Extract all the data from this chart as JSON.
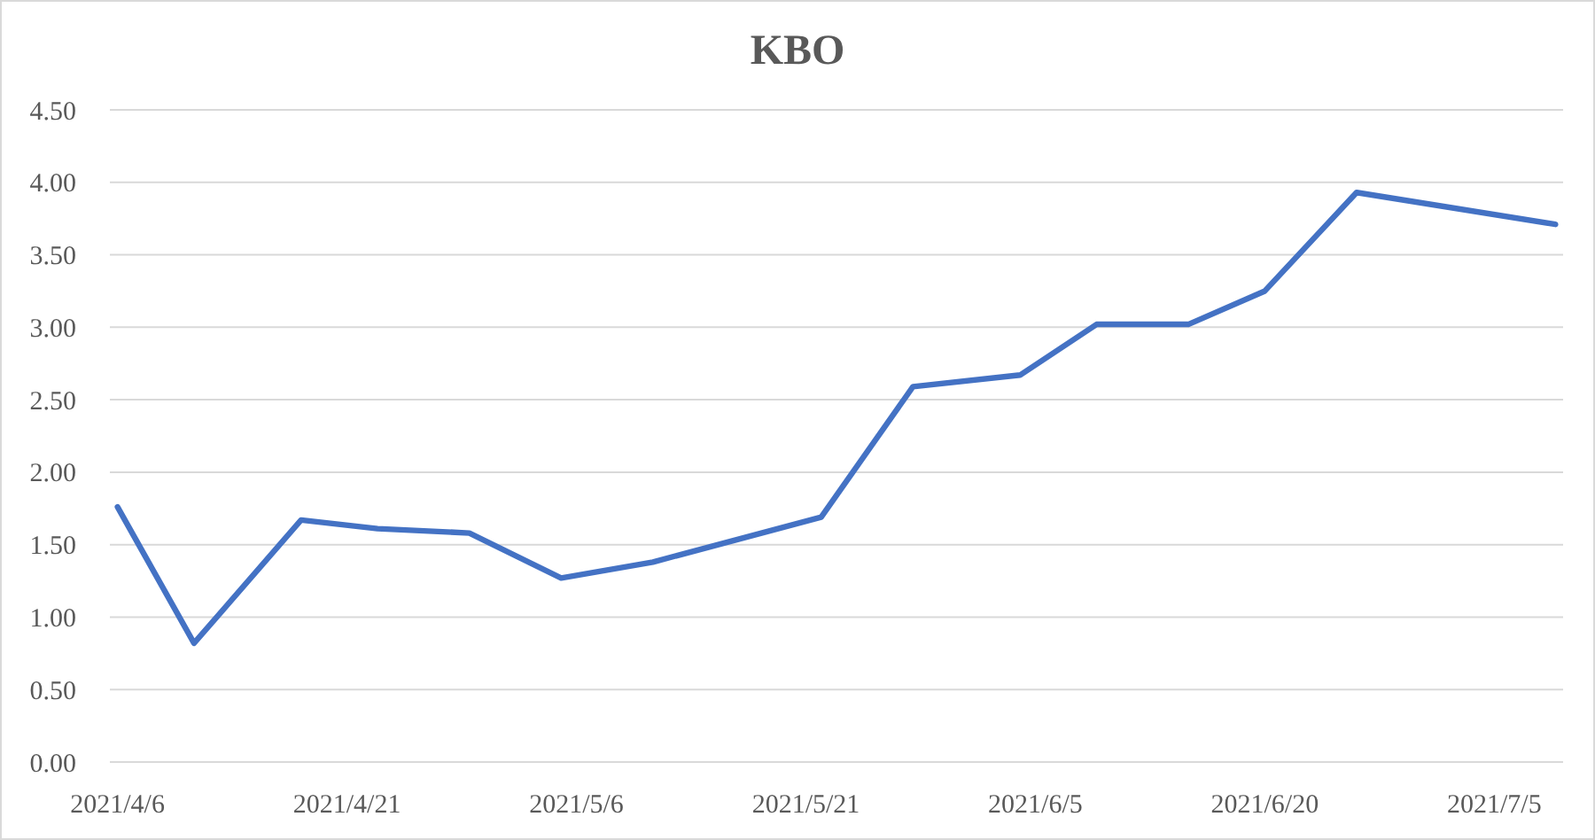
{
  "chart_data": {
    "type": "line",
    "title": "KBO",
    "x": [
      "2021-04-06",
      "2021-04-11",
      "2021-04-18",
      "2021-04-23",
      "2021-04-29",
      "2021-05-05",
      "2021-05-11",
      "2021-05-22",
      "2021-05-28",
      "2021-06-04",
      "2021-06-09",
      "2021-06-15",
      "2021-06-20",
      "2021-06-26",
      "2021-07-09"
    ],
    "series": [
      {
        "color": "#4472c4",
        "values": [
          1.76,
          0.82,
          1.67,
          1.61,
          1.58,
          1.27,
          1.38,
          1.69,
          2.59,
          2.67,
          3.02,
          3.02,
          3.25,
          3.93,
          3.71
        ]
      }
    ],
    "xlim": [
      "2021-04-05T12:00",
      "2021-07-09T12:00"
    ],
    "xticks": [
      {
        "value": "2021-04-06",
        "label": "2021/4/6"
      },
      {
        "value": "2021-04-21",
        "label": "2021/4/21"
      },
      {
        "value": "2021-05-06",
        "label": "2021/5/6"
      },
      {
        "value": "2021-05-21",
        "label": "2021/5/21"
      },
      {
        "value": "2021-06-05",
        "label": "2021/6/5"
      },
      {
        "value": "2021-06-20",
        "label": "2021/6/20"
      },
      {
        "value": "2021-07-05",
        "label": "2021/7/5"
      }
    ],
    "ylim": [
      0,
      4.5
    ],
    "yticks": [
      {
        "value": 0,
        "label": "0.00"
      },
      {
        "value": 0.5,
        "label": "0.50"
      },
      {
        "value": 1,
        "label": "1.00"
      },
      {
        "value": 1.5,
        "label": "1.50"
      },
      {
        "value": 2,
        "label": "2.00"
      },
      {
        "value": 2.5,
        "label": "2.50"
      },
      {
        "value": 3,
        "label": "3.00"
      },
      {
        "value": 3.5,
        "label": "3.50"
      },
      {
        "value": 4,
        "label": "4.00"
      },
      {
        "value": 4.5,
        "label": "4.50"
      }
    ],
    "grid": "y"
  }
}
